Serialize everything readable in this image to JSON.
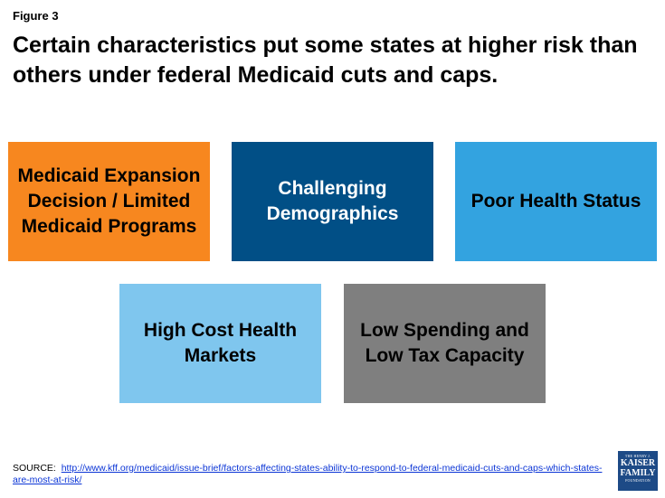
{
  "figure_label": "Figure 3",
  "title": "Certain characteristics put some states at higher risk than others under federal Medicaid cuts and caps.",
  "boxes": {
    "medicaid": "Medicaid Expansion Decision / Limited Medicaid Programs",
    "demographics": "Challenging Demographics",
    "health": "Poor Health Status",
    "cost": "High Cost Health Markets",
    "spending": "Low Spending and Low Tax Capacity"
  },
  "colors": {
    "orange": "#f7871f",
    "dark_blue": "#014f86",
    "medium_blue": "#33a3e0",
    "light_blue": "#7fc6ee",
    "gray": "#7f7f7f"
  },
  "source": {
    "prefix": "SOURCE:",
    "link": "http://www.kff.org/medicaid/issue-brief/factors-affecting-states-ability-to-respond-to-federal-medicaid-cuts-and-caps-which-states-are-most-at-risk/"
  },
  "logo": {
    "line1": "THE HENRY J.",
    "line2": "KAISER",
    "line3": "FAMILY",
    "line4": "FOUNDATION"
  }
}
